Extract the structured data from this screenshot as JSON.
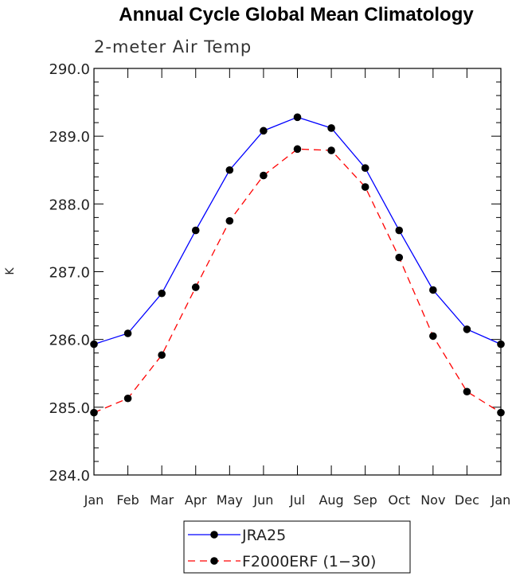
{
  "chart_data": {
    "type": "line",
    "title": "Annual Cycle Global Mean Climatology",
    "subtitle": "2-meter Air Temp",
    "xlabel": "",
    "ylabel": "K",
    "categories": [
      "Jan",
      "Feb",
      "Mar",
      "Apr",
      "May",
      "Jun",
      "Jul",
      "Aug",
      "Sep",
      "Oct",
      "Nov",
      "Dec",
      "Jan"
    ],
    "ylim": [
      284.0,
      290.0
    ],
    "yticks": [
      "284.0",
      "285.0",
      "286.0",
      "287.0",
      "288.0",
      "289.0",
      "290.0"
    ],
    "series": [
      {
        "name": "JRA25",
        "color": "#0000ff",
        "dash": "solid",
        "values": [
          285.93,
          286.09,
          286.68,
          287.61,
          288.5,
          289.08,
          289.28,
          289.12,
          288.53,
          287.61,
          286.73,
          286.15,
          285.93
        ]
      },
      {
        "name": "F2000ERF (1-30)",
        "color": "#ff0000",
        "dash": "dashed",
        "values": [
          284.92,
          285.13,
          285.77,
          286.77,
          287.75,
          288.42,
          288.81,
          288.79,
          288.25,
          287.21,
          286.05,
          285.23,
          284.92
        ]
      }
    ],
    "legend": {
      "placement": "bottom-center",
      "entries": [
        "JRA25",
        "F2000ERF (1−30)"
      ]
    }
  }
}
